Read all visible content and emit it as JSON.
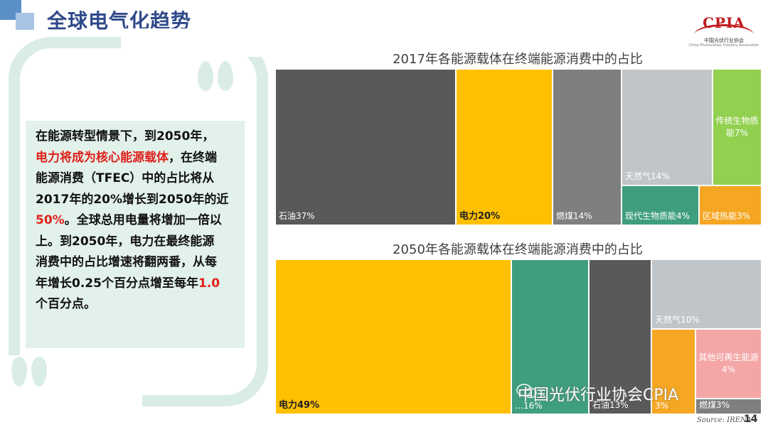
{
  "header": {
    "title": "全球电气化趋势",
    "logo_text": "CPIA",
    "logo_subtitle": "中国光伏行业协会",
    "logo_subtitle_en": "China Photovoltaic Industry Association"
  },
  "text_box": {
    "line1": "在能源转型情景下，到2050年，",
    "line2_red": "电力将成为核心能源载体",
    "line2_rest": "，在终端",
    "line3": "能源消费（TFEC）中的占比将从",
    "line4": "2017年的20%增长到2050年的近",
    "line5_red": "50%",
    "line5_rest": "。全球总用电量将增加一倍以",
    "line6": "上。到2050年，电力在最终能源",
    "line7": "消费中的占比增速将翻两番，从每",
    "line8_a": "年增长0.25个百分点增至每年",
    "line8_red": "1.0",
    "line9": "个百分点。"
  },
  "chart_data": [
    {
      "type": "treemap",
      "title": "2017年各能源载体在终端能源消费中的占比",
      "items": [
        {
          "label": "石油37%",
          "value": 37,
          "color": "#595959"
        },
        {
          "label": "电力20%",
          "value": 20,
          "color": "#ffc000"
        },
        {
          "label": "燃煤14%",
          "value": 14,
          "color": "#7f7f7f"
        },
        {
          "label": "天然气14%",
          "value": 14,
          "color": "#bfc5c9"
        },
        {
          "label": "传统生物质能7%",
          "value": 7,
          "color": "#92d050"
        },
        {
          "label": "现代生物质能4%",
          "value": 4,
          "color": "#3f9e7f"
        },
        {
          "label": "区域热能3%",
          "value": 3,
          "color": "#f5a623"
        }
      ]
    },
    {
      "type": "treemap",
      "title": "2050年各能源载体在终端能源消费中的占比",
      "items": [
        {
          "label": "电力49%",
          "value": 49,
          "color": "#ffc000"
        },
        {
          "label": "…16%",
          "value": 16,
          "color": "#3f9e7f"
        },
        {
          "label": "石油13%",
          "value": 13,
          "color": "#595959"
        },
        {
          "label": "天然气10%",
          "value": 10,
          "color": "#bfc5c9"
        },
        {
          "label": "3%",
          "value": 3,
          "color": "#f5a623"
        },
        {
          "label": "其他可再生能源4%",
          "value": 4,
          "color": "#f4a6a6"
        },
        {
          "label": "燃煤3%",
          "value": 3,
          "color": "#7f7f7f"
        }
      ]
    }
  ],
  "footer": {
    "watermark": "中国光伏行业协会CPIA",
    "source": "Source: IRENA",
    "page_number": "14"
  }
}
